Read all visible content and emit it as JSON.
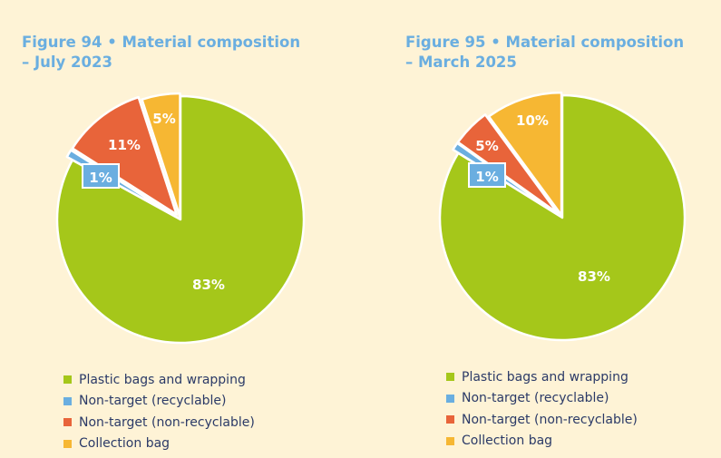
{
  "chart_data": [
    {
      "type": "pie",
      "title_lines": [
        "Figure 94 • Material composition",
        "– July 2023"
      ],
      "categories": [
        "Plastic bags and wrapping",
        "Non-target (recyclable)",
        "Non-target (non-recyclable)",
        "Collection bag"
      ],
      "values": [
        83,
        1,
        11,
        5
      ],
      "labels": [
        "83%",
        "1%",
        "11%",
        "5%"
      ],
      "colors": [
        "#a5c71a",
        "#6aaee0",
        "#e8643a",
        "#f6b733"
      ],
      "legend_position": "bottom-left"
    },
    {
      "type": "pie",
      "title_lines": [
        "Figure 95 • Material composition",
        "– March 2025"
      ],
      "categories": [
        "Plastic bags and wrapping",
        "Non-target (recyclable)",
        "Non-target (non-recyclable)",
        "Collection bag"
      ],
      "values": [
        83,
        1,
        5,
        10
      ],
      "labels": [
        "83%",
        "1%",
        "5%",
        "10%"
      ],
      "colors": [
        "#a5c71a",
        "#6aaee0",
        "#e8643a",
        "#f6b733"
      ],
      "legend_position": "bottom-left"
    }
  ],
  "theme": {
    "background": "#fef3d6",
    "title_color": "#6aaee0",
    "legend_text_color": "#2b3a67"
  }
}
